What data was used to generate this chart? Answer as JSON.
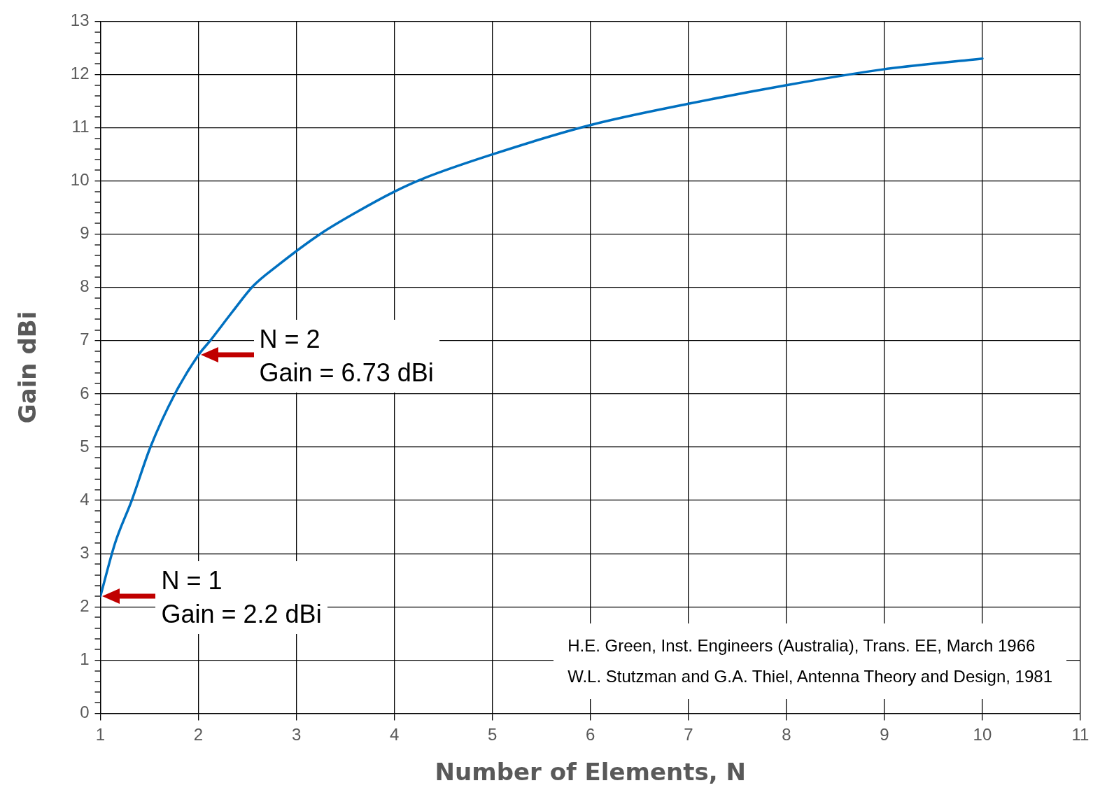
{
  "chart_data": {
    "type": "line",
    "xlabel": "Number of Elements, N",
    "ylabel": "Gain dBi",
    "x": [
      1,
      1.15,
      1.32,
      1.51,
      1.76,
      2,
      2.12,
      2.35,
      2.56,
      2.8,
      3.24,
      3.6,
      4,
      4.3,
      5,
      6,
      7,
      8,
      9,
      10
    ],
    "series": [
      {
        "color": "#0070c0",
        "values": [
          2.2,
          3.2,
          4,
          5,
          6,
          6.73,
          7,
          7.55,
          8.03,
          8.4,
          9,
          9.4,
          9.8,
          10.05,
          10.5,
          11.05,
          11.45,
          11.8,
          12.1,
          12.3
        ]
      }
    ],
    "xlim": [
      1,
      11
    ],
    "xticks": [
      1,
      2,
      3,
      4,
      5,
      6,
      7,
      8,
      9,
      10,
      11
    ],
    "ylim": [
      0,
      13
    ],
    "yticks": [
      0,
      {
        "value": 0.2,
        "label": null
      },
      {
        "value": 0.4,
        "label": null
      },
      {
        "value": 0.6,
        "label": null
      },
      {
        "value": 0.8,
        "label": null
      },
      1,
      {
        "value": 1.2,
        "label": null
      },
      {
        "value": 1.4,
        "label": null
      },
      {
        "value": 1.6,
        "label": null
      },
      {
        "value": 1.8,
        "label": null
      },
      2,
      {
        "value": 2.2,
        "label": null
      },
      {
        "value": 2.4,
        "label": null
      },
      {
        "value": 2.6,
        "label": null
      },
      {
        "value": 2.8,
        "label": null
      },
      3,
      {
        "value": 3.2,
        "label": null
      },
      {
        "value": 3.4,
        "label": null
      },
      {
        "value": 3.6,
        "label": null
      },
      {
        "value": 3.8,
        "label": null
      },
      4,
      {
        "value": 4.2,
        "label": null
      },
      {
        "value": 4.4,
        "label": null
      },
      {
        "value": 4.6,
        "label": null
      },
      {
        "value": 4.8,
        "label": null
      },
      5,
      {
        "value": 5.2,
        "label": null
      },
      {
        "value": 5.4,
        "label": null
      },
      {
        "value": 5.6,
        "label": null
      },
      {
        "value": 5.8,
        "label": null
      },
      6,
      {
        "value": 6.2,
        "label": null
      },
      {
        "value": 6.4,
        "label": null
      },
      {
        "value": 6.6,
        "label": null
      },
      {
        "value": 6.8,
        "label": null
      },
      7,
      {
        "value": 7.2,
        "label": null
      },
      {
        "value": 7.4,
        "label": null
      },
      {
        "value": 7.6,
        "label": null
      },
      {
        "value": 7.8,
        "label": null
      },
      8,
      {
        "value": 8.2,
        "label": null
      },
      {
        "value": 8.4,
        "label": null
      },
      {
        "value": 8.6,
        "label": null
      },
      {
        "value": 8.8,
        "label": null
      },
      9,
      {
        "value": 9.2,
        "label": null
      },
      {
        "value": 9.4,
        "label": null
      },
      {
        "value": 9.6,
        "label": null
      },
      {
        "value": 9.8,
        "label": null
      },
      10,
      {
        "value": 10.2,
        "label": null
      },
      {
        "value": 10.4,
        "label": null
      },
      {
        "value": 10.6,
        "label": null
      },
      {
        "value": 10.8,
        "label": null
      },
      11,
      {
        "value": 11.2,
        "label": null
      },
      {
        "value": 11.4,
        "label": null
      },
      {
        "value": 11.6,
        "label": null
      },
      {
        "value": 11.8,
        "label": null
      },
      12,
      {
        "value": 12.2,
        "label": null
      },
      {
        "value": 12.4,
        "label": null
      },
      {
        "value": 12.6,
        "label": null
      },
      {
        "value": 12.8,
        "label": null
      },
      13
    ],
    "grid": true,
    "legend": false,
    "marker": "none",
    "line_style": "solid",
    "annotations": [
      {
        "text": "N = 1\nGain = 2.2 dBi",
        "x": 1,
        "y": 2.2
      },
      {
        "text": "N = 2\nGain = 6.73 dBi",
        "x": 2,
        "y": 6.73
      },
      "H.E. Green, Inst. Engineers (Australia), Trans. EE, March 1966",
      "W.L. Stutzman and G.A. Thiel, Antenna Theory and Design, 1981"
    ]
  }
}
